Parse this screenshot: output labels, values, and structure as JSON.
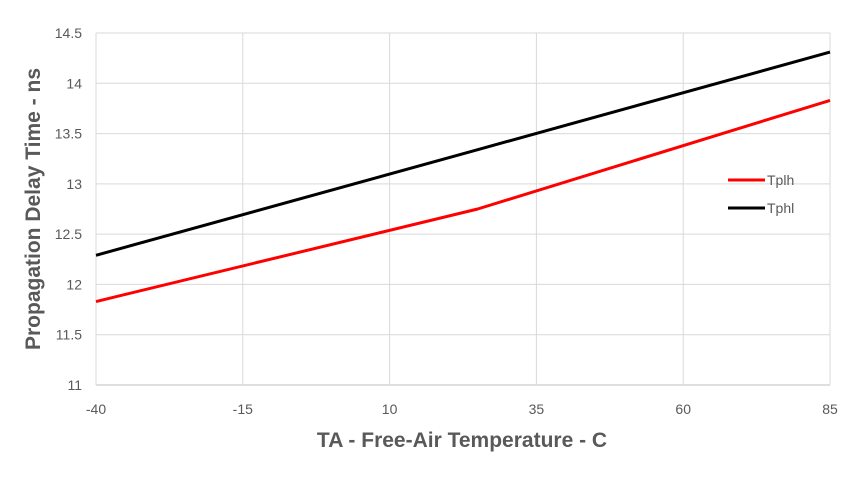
{
  "chart_data": {
    "type": "line",
    "title": "",
    "xlabel": "TA - Free-Air Temperature - C",
    "ylabel": "Propagation Delay Time - ns",
    "xlim": [
      -40,
      85
    ],
    "ylim": [
      11,
      14.5
    ],
    "x_ticks": [
      "-40",
      "-15",
      "10",
      "35",
      "60",
      "85"
    ],
    "y_ticks": [
      "11",
      "11.5",
      "12",
      "12.5",
      "13",
      "13.5",
      "14",
      "14.5"
    ],
    "grid": true,
    "legend_placement": "right",
    "series": [
      {
        "name": "Tplh",
        "color": "#ff0000",
        "x": [
          -40,
          25,
          85
        ],
        "y": [
          11.83,
          12.75,
          13.83
        ]
      },
      {
        "name": "Tphl",
        "color": "#000000",
        "x": [
          -40,
          25,
          85
        ],
        "y": [
          12.29,
          13.34,
          14.31
        ]
      }
    ]
  }
}
